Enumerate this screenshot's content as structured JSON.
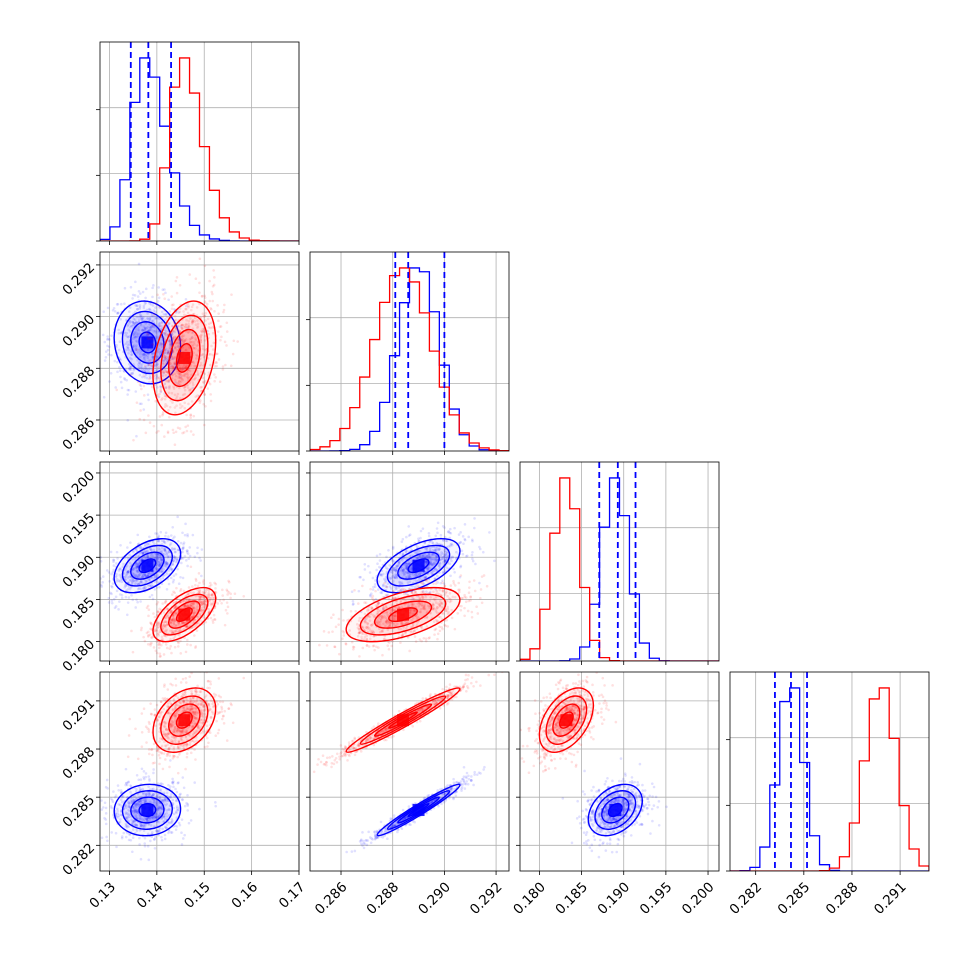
{
  "chart_data": {
    "type": "corner",
    "grid": true,
    "colors": {
      "series_a": "#0000ff",
      "series_b": "#ff0000",
      "quantile_lines": "#0000ff"
    },
    "parameters": [
      {
        "range": [
          0.128,
          0.17
        ],
        "ticks": [
          0.13,
          0.14,
          0.15,
          0.16,
          0.17
        ],
        "tick_labels": [
          "0.13",
          "0.14",
          "0.15",
          "0.16",
          "0.17"
        ]
      },
      {
        "range": [
          0.2848,
          0.2925
        ],
        "ticks": [
          0.286,
          0.288,
          0.29,
          0.292
        ],
        "tick_labels": [
          "0.286",
          "0.288",
          "0.290",
          "0.292"
        ]
      },
      {
        "range": [
          0.1777,
          0.2013
        ],
        "ticks": [
          0.18,
          0.185,
          0.19,
          0.195,
          0.2
        ],
        "tick_labels": [
          "0.180",
          "0.185",
          "0.190",
          "0.195",
          "0.200"
        ]
      },
      {
        "range": [
          0.2804,
          0.2928
        ],
        "ticks": [
          0.282,
          0.285,
          0.288,
          0.291
        ],
        "tick_labels": [
          "0.282",
          "0.285",
          "0.288",
          "0.291"
        ]
      }
    ],
    "series": [
      {
        "name": "",
        "color": "#0000ff",
        "mean": [
          0.138,
          0.289,
          0.189,
          0.2842
        ],
        "std": [
          0.0035,
          0.0008,
          0.0016,
          0.0008
        ],
        "quantiles": [
          [
            0.1345,
            0.1382,
            0.143
          ],
          [
            0.2881,
            0.2886,
            0.29
          ],
          [
            0.1871,
            0.1893,
            0.1914
          ],
          [
            0.2832,
            0.2842,
            0.2852
          ]
        ]
      },
      {
        "name": "",
        "color": "#ff0000",
        "mean": [
          0.1458,
          0.2884,
          0.1832,
          0.2898
        ],
        "std": [
          0.0033,
          0.0011,
          0.0016,
          0.001
        ],
        "quantiles": []
      }
    ],
    "correlations": {
      "series_a": {
        "1_0": -0.1,
        "2_0": 0.45,
        "2_1": 0.55,
        "3_0": 0.05,
        "3_1": 0.97,
        "3_2": 0.35
      },
      "series_b": {
        "1_0": 0.3,
        "2_0": 0.6,
        "2_1": 0.55,
        "3_0": 0.35,
        "3_1": 0.97,
        "3_2": 0.45
      }
    }
  }
}
